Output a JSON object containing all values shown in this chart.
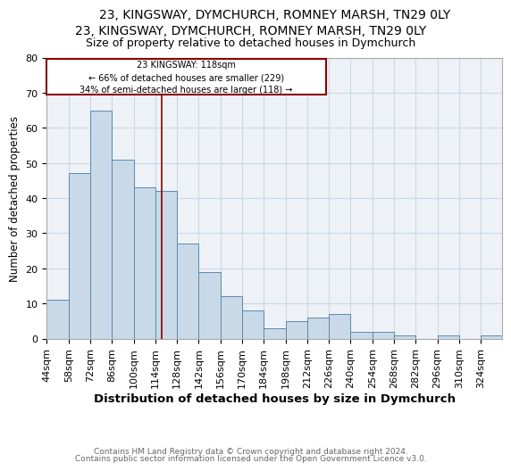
{
  "title1": "23, KINGSWAY, DYMCHURCH, ROMNEY MARSH, TN29 0LY",
  "title2": "Size of property relative to detached houses in Dymchurch",
  "xlabel": "Distribution of detached houses by size in Dymchurch",
  "ylabel": "Number of detached properties",
  "footer1": "Contains HM Land Registry data © Crown copyright and database right 2024.",
  "footer2": "Contains public sector information licensed under the Open Government Licence v3.0.",
  "bin_labels": [
    "44sqm",
    "58sqm",
    "72sqm",
    "86sqm",
    "100sqm",
    "114sqm",
    "128sqm",
    "142sqm",
    "156sqm",
    "170sqm",
    "184sqm",
    "198sqm",
    "212sqm",
    "226sqm",
    "240sqm",
    "254sqm",
    "268sqm",
    "282sqm",
    "296sqm",
    "310sqm",
    "324sqm"
  ],
  "bin_edges": [
    44,
    58,
    72,
    86,
    100,
    114,
    128,
    142,
    156,
    170,
    184,
    198,
    212,
    226,
    240,
    254,
    268,
    282,
    296,
    310,
    324
  ],
  "bar_heights": [
    11,
    47,
    65,
    51,
    43,
    42,
    27,
    19,
    12,
    8,
    3,
    5,
    6,
    7,
    2,
    2,
    1,
    0,
    1,
    0,
    1
  ],
  "bar_color": "#c9d9e8",
  "bar_edgecolor": "#5a8ab0",
  "property_line_x": 118,
  "property_line_color": "#8b0000",
  "annotation_line1": "23 KINGSWAY: 118sqm",
  "annotation_line2": "← 66% of detached houses are smaller (229)",
  "annotation_line3": "34% of semi-detached houses are larger (118) →",
  "annotation_box_color": "#8b0000",
  "grid_color": "#c8d8e8",
  "ylim": [
    0,
    80
  ],
  "yticks": [
    0,
    10,
    20,
    30,
    40,
    50,
    60,
    70,
    80
  ],
  "background_color": "#eef2f7",
  "title1_fontsize": 10,
  "title2_fontsize": 9,
  "ylabel_fontsize": 8.5,
  "xlabel_fontsize": 9.5,
  "tick_fontsize": 8,
  "footer_fontsize": 6.5
}
